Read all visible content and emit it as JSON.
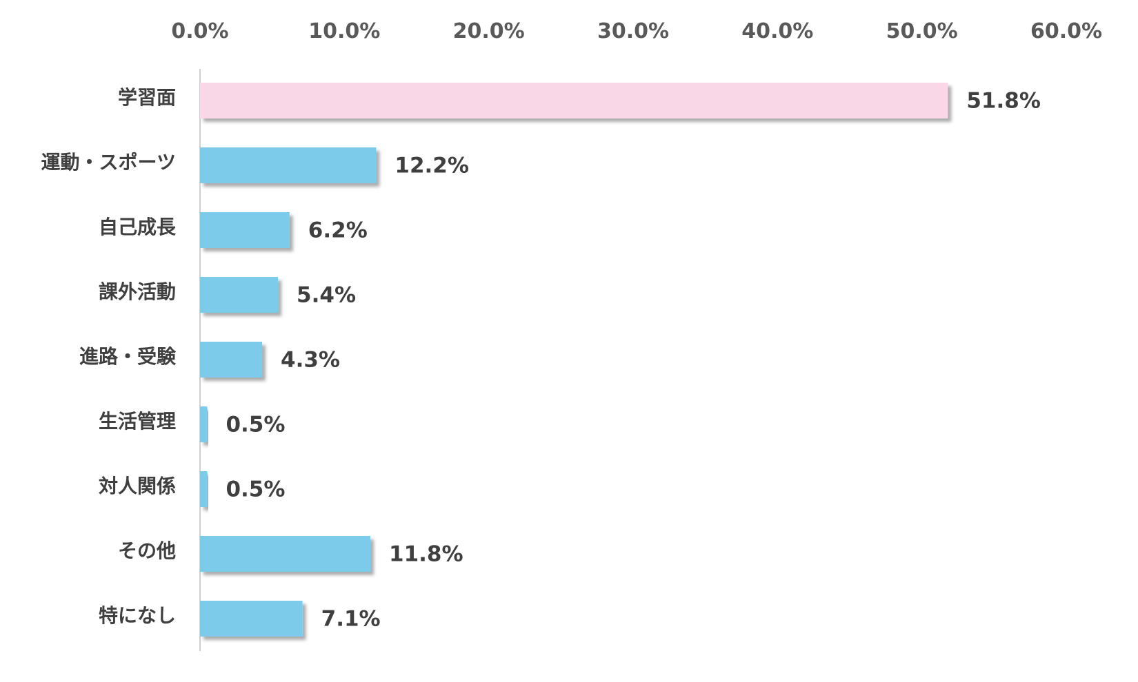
{
  "chart_data": {
    "type": "bar",
    "orientation": "horizontal",
    "title": "",
    "xlabel": "",
    "ylabel": "",
    "xlim": [
      0,
      60
    ],
    "ticks": [
      "0.0%",
      "10.0%",
      "20.0%",
      "30.0%",
      "40.0%",
      "50.0%",
      "60.0%"
    ],
    "tick_values": [
      0,
      10,
      20,
      30,
      40,
      50,
      60
    ],
    "axis_position": "top",
    "grid": false,
    "legend": "none",
    "categories": [
      "学習面",
      "運動・スポーツ",
      "自己成長",
      "課外活動",
      "進路・受験",
      "生活管理",
      "対人関係",
      "その他",
      "特になし"
    ],
    "values": [
      51.8,
      12.2,
      6.2,
      5.4,
      4.3,
      0.5,
      0.5,
      11.8,
      7.1
    ],
    "value_labels": [
      "51.8%",
      "12.2%",
      "6.2%",
      "5.4%",
      "4.3%",
      "0.5%",
      "0.5%",
      "11.8%",
      "7.1%"
    ],
    "highlight_index": 0,
    "colors": {
      "bar": "#7ccbeb",
      "highlight_bar": "#f9d7e6",
      "highlight_label": "#e60012",
      "label": "#3f3f3f",
      "tick": "#595959",
      "axis": "#d0d0d0"
    }
  }
}
